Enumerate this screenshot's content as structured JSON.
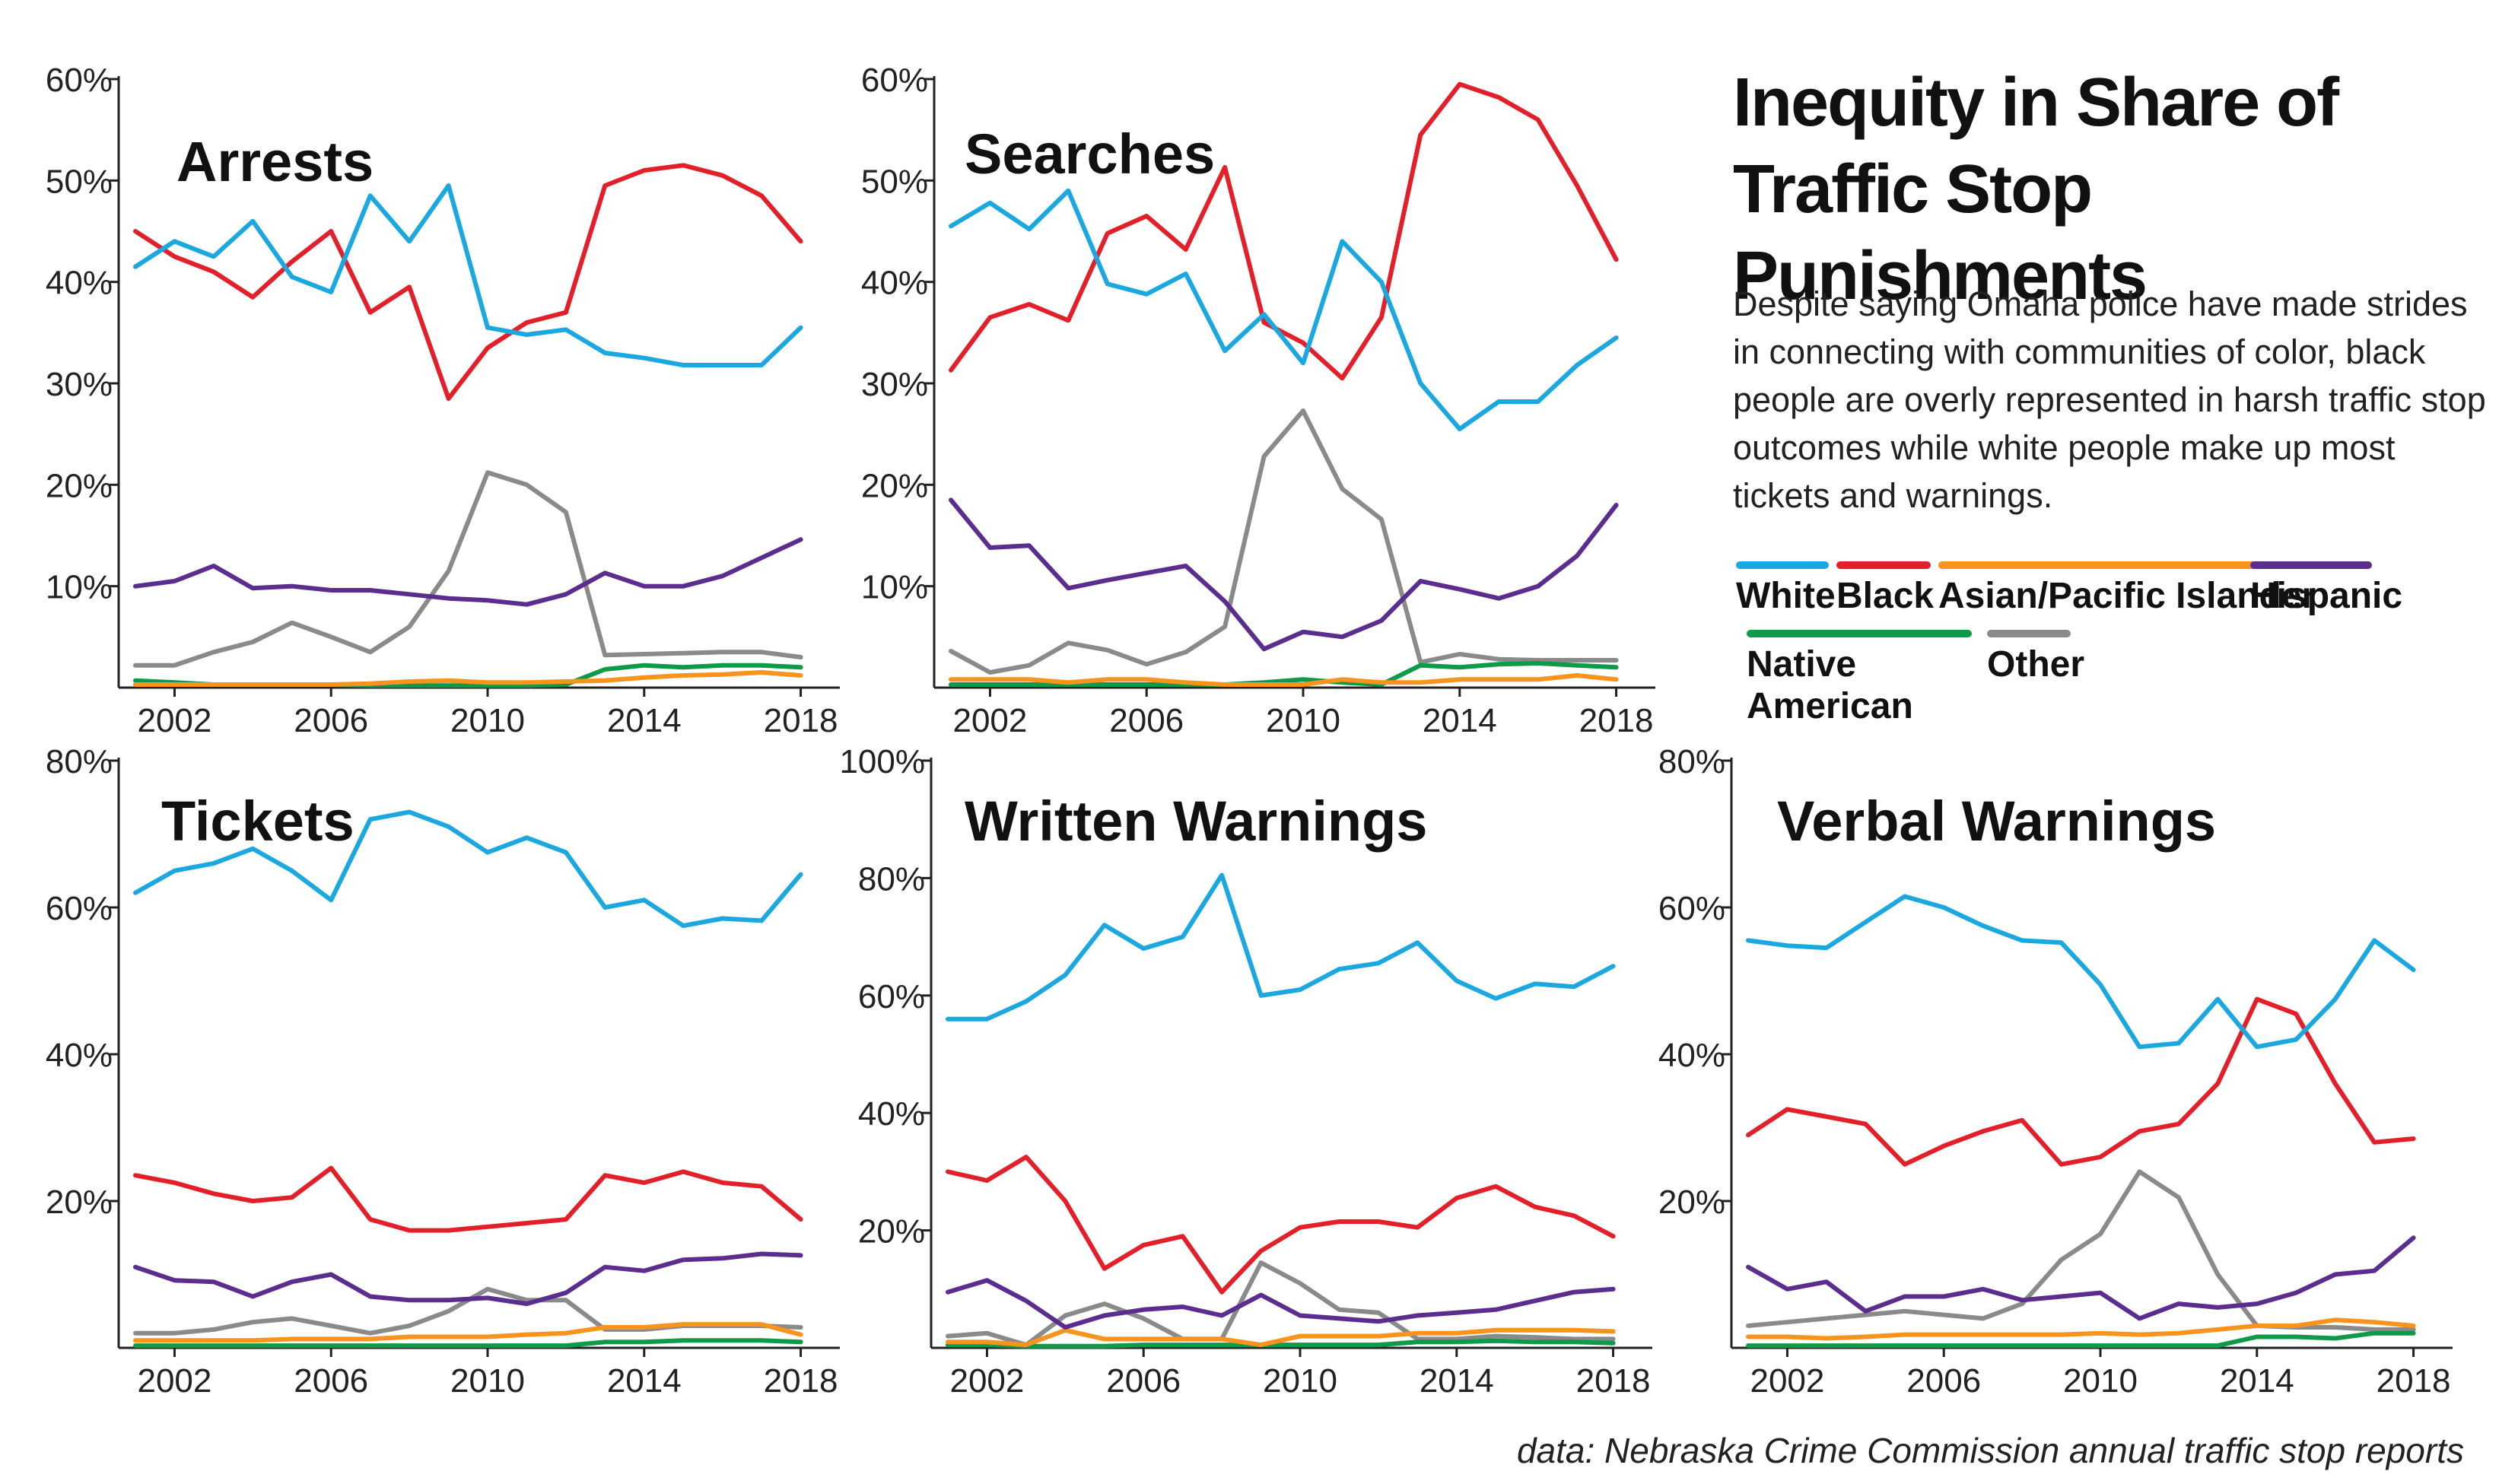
{
  "title": "Inequity in Share of Traffic Stop Punishments",
  "subtitle": "Despite saying Omaha police have made strides in connecting with communities of color, black people are overly represented in harsh traffic stop outcomes while white people make up most tickets and warnings.",
  "source": "data: Nebraska Crime Commission annual traffic stop reports",
  "legend": [
    {
      "name": "White",
      "color": "#1ba8e0"
    },
    {
      "name": "Black",
      "color": "#e3202a"
    },
    {
      "name": "Asian/Pacific Islander",
      "color": "#f7941d"
    },
    {
      "name": "Hispanic",
      "color": "#5b2d8e"
    },
    {
      "name": "Native American",
      "color": "#0e9a48"
    },
    {
      "name": "Other",
      "color": "#8a8a8a"
    }
  ],
  "chart_data": [
    {
      "type": "line",
      "title": "Arrests",
      "x": [
        2001,
        2002,
        2003,
        2004,
        2005,
        2006,
        2007,
        2008,
        2009,
        2010,
        2011,
        2012,
        2013,
        2014,
        2015,
        2016,
        2017,
        2018,
        2019
      ],
      "x_ticks": [
        "2002",
        "2006",
        "2010",
        "2014",
        "2018"
      ],
      "y_ticks": [
        "60%",
        "50%",
        "40%",
        "30%",
        "20%",
        "10%"
      ],
      "ylim": [
        0,
        60
      ],
      "series": [
        {
          "name": "White",
          "values": [
            41.5,
            44,
            42.5,
            46,
            40.5,
            39,
            48.5,
            44,
            49.5,
            35.5,
            34.8,
            35.3,
            33,
            32.5,
            31.8,
            31.8,
            31.8,
            35.5,
            null
          ]
        },
        {
          "name": "Black",
          "values": [
            45,
            42.5,
            41,
            38.5,
            42,
            45,
            37,
            39.5,
            28.5,
            33.5,
            36,
            37,
            49.5,
            51,
            51.5,
            50.5,
            48.5,
            44,
            null
          ]
        },
        {
          "name": "Asian/Pacific Islander",
          "values": [
            0.3,
            0.3,
            0.3,
            0.3,
            0.3,
            0.3,
            0.4,
            0.6,
            0.7,
            0.5,
            0.5,
            0.6,
            0.7,
            1,
            1.2,
            1.3,
            1.5,
            1.2,
            null
          ]
        },
        {
          "name": "Hispanic",
          "values": [
            10,
            10.5,
            12,
            9.8,
            10,
            9.6,
            9.6,
            9.2,
            8.8,
            8.6,
            8.2,
            9.2,
            11.3,
            10,
            10,
            11,
            12.8,
            14.6,
            null
          ]
        },
        {
          "name": "Native American",
          "values": [
            0.7,
            0.5,
            0.3,
            0.3,
            0.3,
            0.3,
            0.2,
            0.2,
            0.2,
            0.2,
            0.2,
            0.3,
            1.8,
            2.2,
            2,
            2.2,
            2.2,
            2,
            null
          ]
        },
        {
          "name": "Other",
          "values": [
            2.2,
            2.2,
            3.5,
            4.5,
            6.4,
            5,
            3.5,
            6,
            11.5,
            21.2,
            20,
            17.3,
            3.2,
            3.3,
            3.4,
            3.5,
            3.5,
            3,
            null
          ]
        }
      ]
    },
    {
      "type": "line",
      "title": "Searches",
      "x": [
        2001,
        2002,
        2003,
        2004,
        2005,
        2006,
        2007,
        2008,
        2009,
        2010,
        2011,
        2012,
        2013,
        2014,
        2015,
        2016,
        2017,
        2018,
        2019
      ],
      "x_ticks": [
        "2002",
        "2006",
        "2010",
        "2014",
        "2018"
      ],
      "y_ticks": [
        "60%",
        "50%",
        "40%",
        "30%",
        "20%",
        "10%"
      ],
      "ylim": [
        0,
        60
      ],
      "series": [
        {
          "name": "White",
          "values": [
            45.5,
            47.8,
            45.2,
            49,
            39.8,
            38.8,
            40.8,
            33.2,
            36.8,
            32,
            44,
            40,
            30,
            25.5,
            28.2,
            28.2,
            31.8,
            34.5,
            null
          ]
        },
        {
          "name": "Black",
          "values": [
            31.3,
            36.5,
            37.8,
            36.2,
            44.8,
            46.5,
            43.2,
            51.3,
            36,
            34,
            30.5,
            36.5,
            54.5,
            59.5,
            58.2,
            56,
            49.5,
            42.2,
            null
          ]
        },
        {
          "name": "Asian/Pacific Islander",
          "values": [
            0.8,
            0.8,
            0.8,
            0.5,
            0.8,
            0.8,
            0.5,
            0.3,
            0.3,
            0.3,
            0.8,
            0.5,
            0.5,
            0.8,
            0.8,
            0.8,
            1.2,
            0.8,
            null
          ]
        },
        {
          "name": "Hispanic",
          "values": [
            18.5,
            13.8,
            14,
            9.8,
            10.6,
            11.3,
            12,
            8.5,
            3.8,
            5.5,
            5,
            6.6,
            10.5,
            9.7,
            8.8,
            10,
            13,
            18,
            null
          ]
        },
        {
          "name": "Native American",
          "values": [
            0.3,
            0.3,
            0.3,
            0.3,
            0.3,
            0.3,
            0.3,
            0.3,
            0.5,
            0.8,
            0.5,
            0.3,
            2.2,
            2,
            2.3,
            2.4,
            2.2,
            2,
            null
          ]
        },
        {
          "name": "Other",
          "values": [
            3.6,
            1.5,
            2.2,
            4.4,
            3.7,
            2.3,
            3.5,
            6,
            22.8,
            27.3,
            19.6,
            16.6,
            2.5,
            3.3,
            2.8,
            2.7,
            2.7,
            2.7,
            null
          ]
        }
      ]
    },
    {
      "type": "line",
      "title": "Tickets",
      "x": [
        2001,
        2002,
        2003,
        2004,
        2005,
        2006,
        2007,
        2008,
        2009,
        2010,
        2011,
        2012,
        2013,
        2014,
        2015,
        2016,
        2017,
        2018,
        2019
      ],
      "x_ticks": [
        "2002",
        "2006",
        "2010",
        "2014",
        "2018"
      ],
      "y_ticks": [
        "80%",
        "60%",
        "40%",
        "20%"
      ],
      "ylim": [
        0,
        80
      ],
      "series": [
        {
          "name": "White",
          "values": [
            62,
            65,
            66,
            68,
            65,
            61,
            72,
            73,
            71,
            67.5,
            69.5,
            67.5,
            60,
            61,
            57.5,
            58.5,
            58.2,
            64.5,
            null
          ]
        },
        {
          "name": "Black",
          "values": [
            23.5,
            22.5,
            21,
            20,
            20.5,
            24.5,
            17.5,
            16,
            16,
            16.5,
            17,
            17.5,
            23.5,
            22.5,
            24,
            22.5,
            22,
            17.5,
            null
          ]
        },
        {
          "name": "Asian/Pacific Islander",
          "values": [
            1,
            1,
            1,
            1,
            1.2,
            1.2,
            1.2,
            1.5,
            1.5,
            1.5,
            1.8,
            2,
            2.8,
            2.8,
            3.2,
            3.2,
            3.2,
            1.8,
            null
          ]
        },
        {
          "name": "Hispanic",
          "values": [
            11,
            9.2,
            9,
            7,
            9,
            10,
            7,
            6.5,
            6.5,
            6.8,
            6,
            7.5,
            11,
            10.5,
            12,
            12.2,
            12.8,
            12.6,
            null
          ]
        },
        {
          "name": "Native American",
          "values": [
            0.3,
            0.3,
            0.3,
            0.3,
            0.3,
            0.3,
            0.3,
            0.3,
            0.3,
            0.3,
            0.3,
            0.3,
            0.8,
            0.8,
            1,
            1,
            1,
            0.8,
            null
          ]
        },
        {
          "name": "Other",
          "values": [
            2,
            2,
            2.5,
            3.5,
            4,
            3,
            2,
            3,
            5,
            8,
            6.5,
            6.5,
            2.5,
            2.5,
            3,
            3,
            3,
            2.8,
            null
          ]
        }
      ]
    },
    {
      "type": "line",
      "title": "Written Warnings",
      "x": [
        2001,
        2002,
        2003,
        2004,
        2005,
        2006,
        2007,
        2008,
        2009,
        2010,
        2011,
        2012,
        2013,
        2014,
        2015,
        2016,
        2017,
        2018,
        2019
      ],
      "x_ticks": [
        "2002",
        "2006",
        "2010",
        "2014",
        "2018"
      ],
      "y_ticks": [
        "100%",
        "80%",
        "60%",
        "40%",
        "20%"
      ],
      "ylim": [
        0,
        100
      ],
      "series": [
        {
          "name": "White",
          "values": [
            56,
            56,
            59,
            63.5,
            72,
            68,
            70,
            80.5,
            60,
            61,
            64.5,
            65.5,
            69,
            62.5,
            59.5,
            62,
            61.5,
            65,
            null
          ]
        },
        {
          "name": "Black",
          "values": [
            30,
            28.5,
            32.5,
            25,
            13.5,
            17.5,
            19,
            9.5,
            16.5,
            20.5,
            21.5,
            21.5,
            20.5,
            25.5,
            27.5,
            24,
            22.5,
            19,
            null
          ]
        },
        {
          "name": "Asian/Pacific Islander",
          "values": [
            1,
            1,
            0.5,
            3,
            1.5,
            1.5,
            1.5,
            1.5,
            0.5,
            2,
            2,
            2,
            2.5,
            2.5,
            3,
            3,
            3,
            2.8,
            null
          ]
        },
        {
          "name": "Hispanic",
          "values": [
            9.5,
            11.5,
            8,
            3.5,
            5.5,
            6.5,
            7,
            5.5,
            9,
            5.5,
            5,
            4.5,
            5.5,
            6,
            6.5,
            8,
            9.5,
            10,
            null
          ]
        },
        {
          "name": "Native American",
          "values": [
            0.5,
            0.5,
            0.3,
            0.3,
            0.3,
            0.5,
            0.5,
            0.5,
            0.5,
            0.5,
            0.5,
            0.5,
            1,
            1,
            1.2,
            1,
            1,
            0.8,
            null
          ]
        },
        {
          "name": "Other",
          "values": [
            2,
            2.5,
            0.5,
            5.5,
            7.5,
            5,
            1.5,
            1.5,
            14.5,
            11,
            6.5,
            6,
            1.5,
            1.5,
            2,
            1.8,
            1.5,
            1.5,
            null
          ]
        }
      ]
    },
    {
      "type": "line",
      "title": "Verbal Warnings",
      "x": [
        2001,
        2002,
        2003,
        2004,
        2005,
        2006,
        2007,
        2008,
        2009,
        2010,
        2011,
        2012,
        2013,
        2014,
        2015,
        2016,
        2017,
        2018,
        2019
      ],
      "x_ticks": [
        "2002",
        "2006",
        "2010",
        "2014",
        "2018"
      ],
      "y_ticks": [
        "80%",
        "60%",
        "40%",
        "20%"
      ],
      "ylim": [
        0,
        80
      ],
      "series": [
        {
          "name": "White",
          "values": [
            55.5,
            54.8,
            54.5,
            58,
            61.5,
            60,
            57.5,
            55.5,
            55.2,
            49.5,
            41,
            41.5,
            47.5,
            41,
            42,
            47.5,
            55.5,
            51.5,
            null
          ]
        },
        {
          "name": "Black",
          "values": [
            29,
            32.5,
            31.5,
            30.5,
            25,
            27.5,
            29.5,
            31,
            25,
            26,
            29.5,
            30.5,
            36,
            47.5,
            45.5,
            36,
            28,
            28.5,
            null
          ]
        },
        {
          "name": "Asian/Pacific Islander",
          "values": [
            1.5,
            1.5,
            1.3,
            1.5,
            1.8,
            1.8,
            1.8,
            1.8,
            1.8,
            2,
            1.8,
            2,
            2.5,
            3,
            3,
            3.8,
            3.5,
            3,
            null
          ]
        },
        {
          "name": "Hispanic",
          "values": [
            11,
            8,
            9,
            5,
            7,
            7,
            8,
            6.5,
            7,
            7.5,
            4,
            6,
            5.5,
            6,
            7.5,
            10,
            10.5,
            15,
            null
          ]
        },
        {
          "name": "Native American",
          "values": [
            0.3,
            0.3,
            0.3,
            0.3,
            0.3,
            0.3,
            0.3,
            0.3,
            0.3,
            0.3,
            0.3,
            0.3,
            0.3,
            1.5,
            1.5,
            1.3,
            2,
            2,
            null
          ]
        },
        {
          "name": "Other",
          "values": [
            3,
            3.5,
            4,
            4.5,
            5,
            4.5,
            4,
            6,
            12,
            15.5,
            24,
            20.5,
            10,
            3,
            2.8,
            2.8,
            2.5,
            2.5,
            null
          ]
        }
      ]
    }
  ]
}
